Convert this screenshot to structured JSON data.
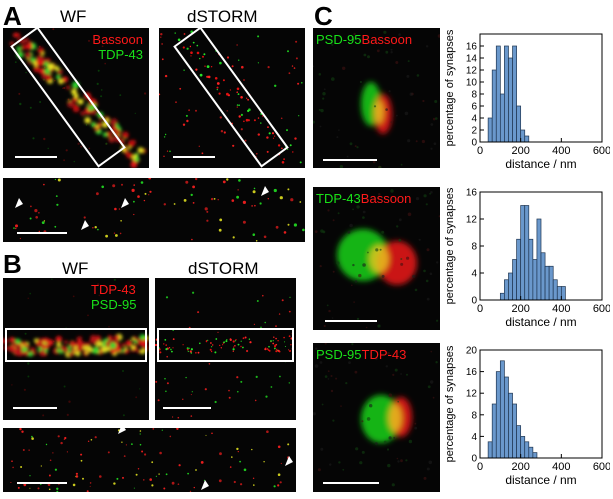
{
  "panels": {
    "A": {
      "letter": "A",
      "wf_title": "WF",
      "dstorm_title": "dSTORM",
      "labels": [
        {
          "text": "Bassoon",
          "color": "red"
        },
        {
          "text": "TDP-43",
          "color": "green"
        }
      ]
    },
    "B": {
      "letter": "B",
      "wf_title": "WF",
      "dstorm_title": "dSTORM",
      "labels": [
        {
          "text": "TDP-43",
          "color": "red"
        },
        {
          "text": "PSD-95",
          "color": "green"
        }
      ]
    },
    "C": {
      "letter": "C",
      "rows": [
        {
          "label_a": "PSD-95",
          "label_a_color": "green",
          "label_b": "Bassoon",
          "label_b_color": "red"
        },
        {
          "label_a": "TDP-43",
          "label_a_color": "green",
          "label_b": "Bassoon",
          "label_b_color": "red"
        },
        {
          "label_a": "PSD-95",
          "label_a_color": "green",
          "label_b": "TDP-43",
          "label_b_color": "red"
        }
      ]
    }
  },
  "chart_data": [
    {
      "type": "bar",
      "xlabel": "distance / nm",
      "ylabel": "percentage of synapses",
      "xlim": [
        0,
        600
      ],
      "ylim": [
        0,
        18
      ],
      "xticks": [
        0,
        200,
        400,
        600
      ],
      "yticks": [
        0,
        2,
        4,
        6,
        8,
        10,
        12,
        14,
        16
      ],
      "bin_width": 20,
      "bin_starts": [
        40,
        60,
        80,
        100,
        120,
        140,
        160,
        180,
        200,
        220
      ],
      "values": [
        4,
        12,
        16,
        8,
        16,
        14,
        16,
        6,
        2,
        1
      ]
    },
    {
      "type": "bar",
      "xlabel": "distance / nm",
      "ylabel": "percentage of synapses",
      "xlim": [
        0,
        600
      ],
      "ylim": [
        0,
        16
      ],
      "xticks": [
        0,
        200,
        400,
        600
      ],
      "yticks": [
        0,
        4,
        8,
        12,
        16
      ],
      "bin_width": 20,
      "bin_starts": [
        100,
        120,
        140,
        160,
        180,
        200,
        220,
        240,
        260,
        280,
        300,
        320,
        340,
        360,
        380,
        400
      ],
      "values": [
        1,
        3,
        4,
        6,
        9,
        14,
        14,
        9,
        6,
        12,
        7,
        5,
        5,
        3,
        2,
        2
      ]
    },
    {
      "type": "bar",
      "xlabel": "distance / nm",
      "ylabel": "percentage of synapses",
      "xlim": [
        0,
        600
      ],
      "ylim": [
        0,
        20
      ],
      "xticks": [
        0,
        200,
        400,
        600
      ],
      "yticks": [
        0,
        4,
        8,
        12,
        16,
        20
      ],
      "bin_width": 20,
      "bin_starts": [
        40,
        60,
        80,
        100,
        120,
        140,
        160,
        180,
        200,
        220,
        240,
        260
      ],
      "values": [
        3,
        10,
        16,
        18,
        15,
        12,
        10,
        6,
        4,
        3,
        2,
        1
      ]
    }
  ]
}
